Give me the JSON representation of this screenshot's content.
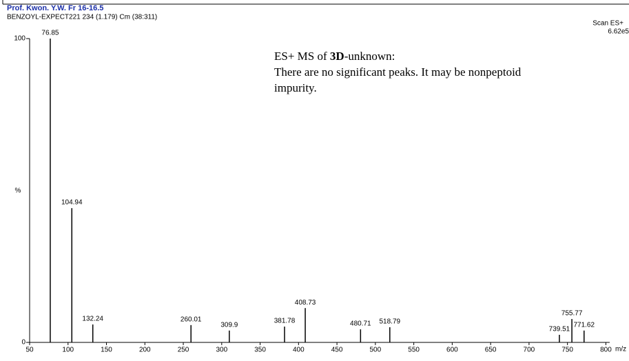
{
  "chart_data": {
    "type": "spectrum",
    "title": "Prof. Kwon. Y.W. Fr 16-16.5",
    "subtitle": "BENZOYL-EXPECT221 234 (1.179) Cm (38:311)",
    "scan_label": "Scan ES+",
    "scan_intensity": "6.62e5",
    "y_label": "%",
    "x_label": "m/z",
    "annotation": {
      "line1_pre": "ES+ MS of ",
      "line1_bold": "3D",
      "line1_post": "-unknown:",
      "line2": "There are no significant peaks. It may be nonpeptoid",
      "line3": "impurity."
    },
    "x": [
      76.85,
      104.94,
      132.24,
      260.01,
      309.9,
      381.78,
      408.73,
      480.71,
      518.79,
      739.51,
      755.77,
      771.62
    ],
    "values": [
      100,
      44.2,
      5.9,
      5.7,
      3.9,
      5.2,
      11.3,
      4.3,
      5.0,
      2.5,
      7.7,
      3.9
    ],
    "color": "#000000",
    "xlim": [
      50,
      805
    ],
    "xticks": [
      50,
      100,
      150,
      200,
      250,
      300,
      350,
      400,
      450,
      500,
      550,
      600,
      650,
      700,
      750,
      800
    ],
    "ylim": [
      0,
      100
    ],
    "yticks": [
      0,
      100
    ]
  }
}
